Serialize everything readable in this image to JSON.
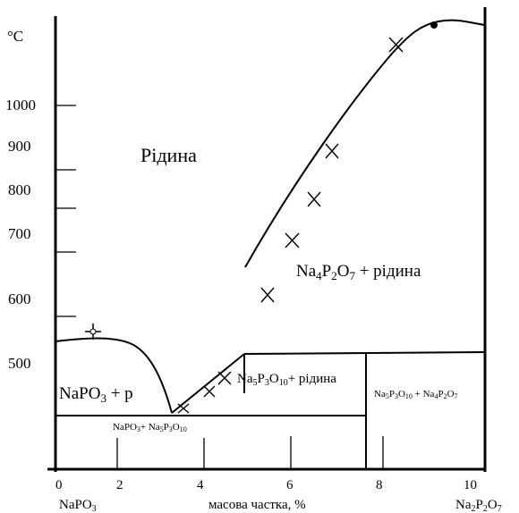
{
  "y_unit": "°C",
  "y_ticks": [
    "1000",
    "900",
    "800",
    "700",
    "600",
    "500"
  ],
  "x_ticks": [
    "0",
    "2",
    "4",
    "6",
    "8",
    "10"
  ],
  "x_axis_label": "масова частка, %",
  "x_left_component": {
    "base": "NaPO",
    "sub": "3"
  },
  "x_right_component": {
    "p1": "Na",
    "s1": "2",
    "p2": "P",
    "s2": "2",
    "p3": "O",
    "s3": "7"
  },
  "regions": {
    "liquid": "Рідина",
    "na4p2o7_liquid": {
      "p1": "Na",
      "s1": "4",
      "p2": "P",
      "s2": "2",
      "p3": "O",
      "s3": "7",
      "rest": " + рідина"
    },
    "napo3_p": {
      "p1": "NaPO",
      "s1": "3",
      "rest": " + р"
    },
    "na5p3o10_liquid": {
      "p1": "Na",
      "s1": "5",
      "p2": "P",
      "s2": "3",
      "p3": "O",
      "s3": "10",
      "rest": "+ рідина"
    },
    "napo3_na5p3o10": {
      "p1": "NaPO",
      "s1": "3",
      "p2": "+ Na",
      "s2": "5",
      "p3": "P",
      "s3": "3",
      "p4": "O",
      "s4": "10"
    },
    "na5p3o10_na4p2o7": {
      "p1": "Na",
      "s1": "5",
      "p2": "P",
      "s2": "3",
      "p3": "O",
      "s3": "10",
      "p4": " + Na",
      "s4": "4",
      "p5": "P",
      "s5": "2",
      "p6": "O",
      "s6": "7"
    }
  }
}
